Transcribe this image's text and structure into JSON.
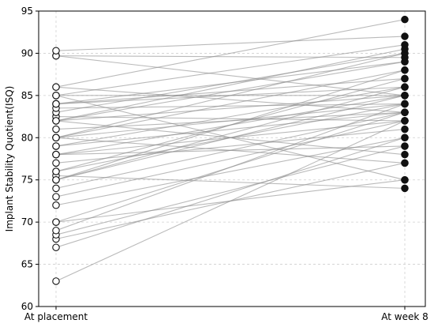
{
  "chart_data": {
    "type": "line",
    "title": "",
    "xlabel": "",
    "ylabel": "Implant Stability Quotient(ISQ)",
    "categories": [
      "At placement",
      "At week 8"
    ],
    "ylim": [
      60,
      95
    ],
    "yticks": [
      60,
      65,
      70,
      75,
      80,
      85,
      90,
      95
    ],
    "grid": true,
    "colors": {
      "line": "#8c8c8c",
      "placement_marker_fill": "#ffffff",
      "week8_marker_fill": "#111111",
      "marker_edge": "#111111",
      "grid": "#cfcfcf"
    },
    "pairs": [
      [
        63,
        82
      ],
      [
        67,
        80
      ],
      [
        68,
        77
      ],
      [
        68.5,
        79
      ],
      [
        69,
        84
      ],
      [
        70,
        75
      ],
      [
        70,
        83
      ],
      [
        72,
        80
      ],
      [
        73,
        82
      ],
      [
        74,
        83
      ],
      [
        75,
        85
      ],
      [
        75,
        86
      ],
      [
        75.5,
        74
      ],
      [
        76,
        84
      ],
      [
        76,
        87
      ],
      [
        77,
        81
      ],
      [
        78,
        79
      ],
      [
        78,
        85
      ],
      [
        79,
        83
      ],
      [
        79,
        86
      ],
      [
        80,
        77
      ],
      [
        80,
        84
      ],
      [
        80,
        88
      ],
      [
        81,
        83
      ],
      [
        82,
        78
      ],
      [
        82,
        85
      ],
      [
        82,
        89
      ],
      [
        82.5,
        82
      ],
      [
        83,
        90
      ],
      [
        83.5,
        84
      ],
      [
        84,
        86
      ],
      [
        84,
        87
      ],
      [
        85,
        91
      ],
      [
        85,
        85
      ],
      [
        85,
        75
      ],
      [
        86,
        94
      ],
      [
        86,
        83
      ],
      [
        89.7,
        89.5
      ],
      [
        89.7,
        85
      ],
      [
        90.3,
        92
      ],
      [
        75,
        88
      ],
      [
        80,
        90
      ],
      [
        82,
        90.5
      ],
      [
        84,
        89
      ],
      [
        78,
        82
      ]
    ]
  }
}
